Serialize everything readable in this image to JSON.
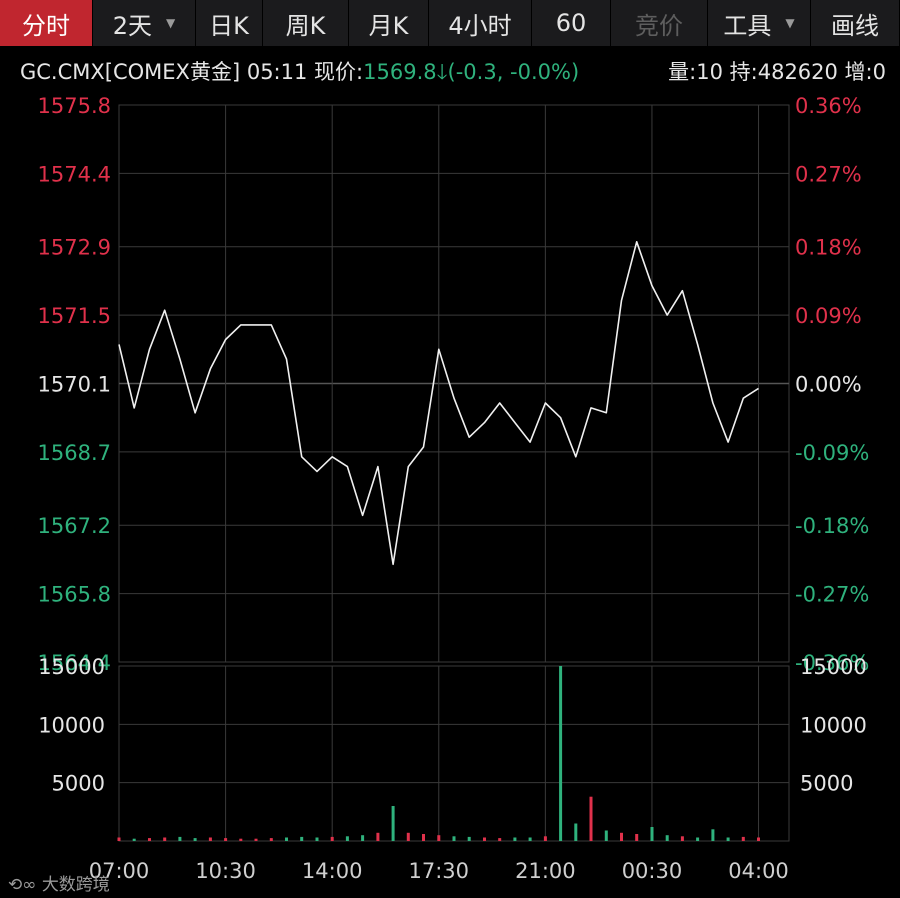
{
  "toolbar": {
    "tabs": [
      {
        "label": "分时",
        "active": true,
        "width": 93
      },
      {
        "label": "2天",
        "dropdown": true,
        "width": 103
      },
      {
        "label": "日K",
        "width": 67
      },
      {
        "label": "周K",
        "width": 86
      },
      {
        "label": "月K",
        "width": 80
      },
      {
        "label": "4小时",
        "width": 103
      },
      {
        "label": "60",
        "width": 79
      },
      {
        "label": "竞价",
        "disabled": true,
        "width": 97
      },
      {
        "label": "工具",
        "dropdown": true,
        "width": 103
      },
      {
        "label": "画线",
        "width": 89
      }
    ]
  },
  "info": {
    "symbol": "GC.CMX[COMEX黄金]",
    "time": "05:11",
    "price_label": "现价:",
    "price": "1569.8",
    "change": "(-0.3, -0.0%)",
    "stats": "量:10 持:482620 增:0"
  },
  "watermark": "大数跨境",
  "colors": {
    "up": "#e0314b",
    "down": "#2fb27d",
    "line": "#f0f0f0",
    "grid": "#3a3a3a"
  },
  "chart_data": [
    {
      "type": "line",
      "series": [
        {
          "x": [
            "07:00",
            "07:30",
            "08:00",
            "08:30",
            "09:00",
            "09:30",
            "10:00",
            "10:30",
            "11:00",
            "11:30",
            "12:00",
            "12:30",
            "13:00",
            "13:30",
            "14:00",
            "14:30",
            "15:00",
            "15:30",
            "16:00",
            "16:30",
            "17:00",
            "17:30",
            "18:00",
            "18:30",
            "19:00",
            "19:30",
            "20:00",
            "20:30",
            "21:00",
            "21:30",
            "22:00",
            "22:30",
            "23:00",
            "23:30",
            "00:00",
            "00:30",
            "01:00",
            "01:30",
            "02:00",
            "02:30",
            "03:00",
            "03:30",
            "04:00",
            "04:30",
            "05:00"
          ],
          "values": [
            1570.9,
            1569.6,
            1570.8,
            1571.6,
            1570.6,
            1569.5,
            1570.4,
            1571.0,
            1571.3,
            1571.3,
            1571.3,
            1570.6,
            1568.6,
            1568.3,
            1568.6,
            1568.4,
            1567.4,
            1568.4,
            1566.4,
            1568.4,
            1568.8,
            1570.8,
            1569.8,
            1569.0,
            1569.3,
            1569.7,
            1569.3,
            1568.9,
            1569.7,
            1569.4,
            1568.6,
            1569.6,
            1569.5,
            1571.8,
            1573.0,
            1572.1,
            1571.5,
            1572.0,
            1570.9,
            1569.7,
            1568.9,
            1569.8,
            1570.0,
            null,
            null
          ]
        }
      ],
      "prev_close": 1570.1,
      "yticks_left": [
        "1575.8",
        "1574.4",
        "1572.9",
        "1571.5",
        "1570.1",
        "1568.7",
        "1567.2",
        "1565.8",
        "1564.4"
      ],
      "yticks_right": [
        "0.36%",
        "0.27%",
        "0.18%",
        "0.09%",
        "0.00%",
        "-0.09%",
        "-0.18%",
        "-0.27%",
        "-0.36%"
      ],
      "ylim": [
        1564.4,
        1575.8
      ],
      "grid": true
    },
    {
      "type": "bar",
      "x": [
        "07:00",
        "07:30",
        "08:00",
        "08:30",
        "09:00",
        "09:30",
        "10:00",
        "10:30",
        "11:00",
        "11:30",
        "12:00",
        "12:30",
        "13:00",
        "13:30",
        "14:00",
        "14:30",
        "15:00",
        "15:30",
        "16:00",
        "16:30",
        "17:00",
        "17:30",
        "18:00",
        "18:30",
        "19:00",
        "19:30",
        "20:00",
        "20:30",
        "21:00",
        "21:30",
        "22:00",
        "22:30",
        "23:00",
        "23:30",
        "00:00",
        "00:30",
        "01:00",
        "01:30",
        "02:00",
        "02:30",
        "03:00",
        "03:30",
        "04:00",
        "04:30",
        "05:00"
      ],
      "values": [
        300,
        200,
        250,
        300,
        350,
        250,
        300,
        250,
        200,
        200,
        250,
        300,
        350,
        300,
        350,
        400,
        500,
        700,
        3000,
        700,
        600,
        500,
        400,
        350,
        300,
        250,
        300,
        300,
        400,
        15000,
        1500,
        3800,
        900,
        700,
        600,
        1200,
        500,
        400,
        300,
        1000,
        300,
        350,
        300,
        null,
        null
      ],
      "yticks": [
        "15000",
        "10000",
        "5000"
      ],
      "ylim": [
        0,
        15000
      ],
      "grid": true
    }
  ],
  "xticks": [
    "07:00",
    "10:30",
    "14:00",
    "17:30",
    "21:00",
    "00:30",
    "04:00"
  ]
}
